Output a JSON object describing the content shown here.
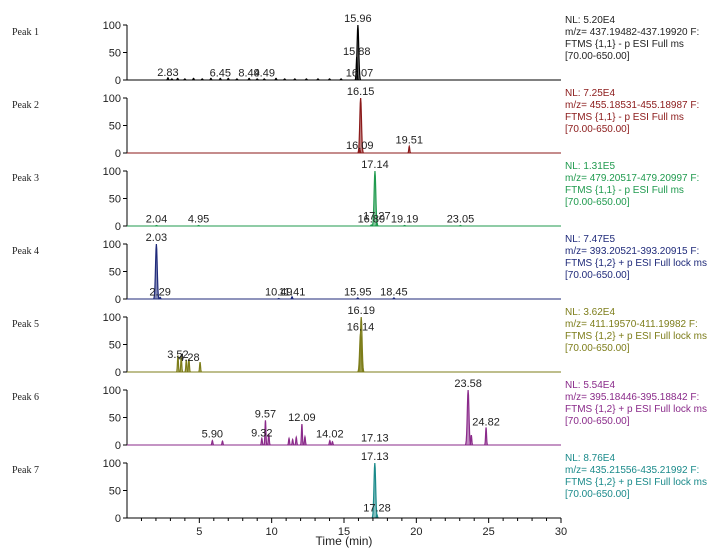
{
  "chart_data": {
    "type": "line",
    "xlabel": "Time (min)",
    "xlim": [
      0,
      30
    ],
    "x_ticks": [
      5,
      10,
      15,
      20,
      25,
      30
    ],
    "y_ticks": [
      0,
      50,
      100
    ],
    "panels": [
      {
        "name": "Peak 1",
        "color": "#000000",
        "info": [
          "NL: 5.20E4",
          "m/z= 437.19482-437.19920 F:",
          "FTMS {1,1}  - p ESI Full ms",
          "[70.00-650.00]"
        ],
        "annotations": [
          {
            "rt": 2.83,
            "y": 2,
            "label": "2.83"
          },
          {
            "rt": 6.45,
            "y": 1,
            "label": "6.45"
          },
          {
            "rt": 8.44,
            "y": 1,
            "label": "8.44"
          },
          {
            "rt": 9.49,
            "y": 1,
            "label": "9.49"
          },
          {
            "rt": 15.88,
            "y": 40,
            "label": "15.88"
          },
          {
            "rt": 15.96,
            "y": 100,
            "label": "15.96"
          },
          {
            "rt": 16.07,
            "y": 1,
            "label": "16.07"
          }
        ],
        "peaks": [
          {
            "rt": 2.83,
            "h": 4
          },
          {
            "rt": 3.1,
            "h": 2
          },
          {
            "rt": 3.5,
            "h": 3
          },
          {
            "rt": 4.0,
            "h": 2
          },
          {
            "rt": 4.6,
            "h": 3
          },
          {
            "rt": 5.2,
            "h": 2
          },
          {
            "rt": 5.8,
            "h": 3
          },
          {
            "rt": 6.45,
            "h": 3
          },
          {
            "rt": 7.0,
            "h": 3
          },
          {
            "rt": 7.6,
            "h": 2
          },
          {
            "rt": 8.44,
            "h": 3
          },
          {
            "rt": 9.0,
            "h": 2
          },
          {
            "rt": 9.49,
            "h": 2
          },
          {
            "rt": 10.3,
            "h": 3
          },
          {
            "rt": 10.9,
            "h": 2
          },
          {
            "rt": 11.6,
            "h": 2
          },
          {
            "rt": 12.4,
            "h": 2
          },
          {
            "rt": 13.2,
            "h": 2
          },
          {
            "rt": 14.0,
            "h": 2
          },
          {
            "rt": 14.8,
            "h": 2
          },
          {
            "rt": 15.88,
            "h": 42
          },
          {
            "rt": 15.96,
            "h": 100
          }
        ]
      },
      {
        "name": "Peak 2",
        "color": "#8b1a1a",
        "info": [
          "NL: 7.25E4",
          "m/z= 455.18531-455.18987 F:",
          "FTMS {1,1}  - p ESI Full ms",
          "[70.00-650.00]"
        ],
        "annotations": [
          {
            "rt": 16.09,
            "y": 2,
            "label": "16.09"
          },
          {
            "rt": 16.15,
            "y": 100,
            "label": "16.15"
          },
          {
            "rt": 19.51,
            "y": 12,
            "label": "19.51"
          }
        ],
        "peaks": [
          {
            "rt": 16.09,
            "h": 6
          },
          {
            "rt": 16.15,
            "h": 100
          },
          {
            "rt": 19.51,
            "h": 12
          }
        ]
      },
      {
        "name": "Peak 3",
        "color": "#1f9a4e",
        "info": [
          "NL: 1.31E5",
          "m/z= 479.20517-479.20997 F:",
          "FTMS {1,1}  - p ESI Full ms",
          "[70.00-650.00]"
        ],
        "annotations": [
          {
            "rt": 2.04,
            "y": 1,
            "label": "2.04"
          },
          {
            "rt": 4.95,
            "y": 1,
            "label": "4.95"
          },
          {
            "rt": 16.89,
            "y": 1,
            "label": "16.89"
          },
          {
            "rt": 17.14,
            "y": 100,
            "label": "17.14"
          },
          {
            "rt": 17.27,
            "y": 6,
            "label": "17.27"
          },
          {
            "rt": 19.19,
            "y": 1,
            "label": "19.19"
          },
          {
            "rt": 23.05,
            "y": 1,
            "label": "23.05"
          }
        ],
        "peaks": [
          {
            "rt": 2.04,
            "h": 1
          },
          {
            "rt": 4.95,
            "h": 1
          },
          {
            "rt": 16.89,
            "h": 2
          },
          {
            "rt": 17.14,
            "h": 100
          },
          {
            "rt": 17.27,
            "h": 6
          },
          {
            "rt": 19.19,
            "h": 1
          },
          {
            "rt": 23.05,
            "h": 1
          }
        ]
      },
      {
        "name": "Peak 4",
        "color": "#1f2a7a",
        "info": [
          "NL: 7.47E5",
          "m/z= 393.20521-393.20915 F:",
          "FTMS {1,2}  + p ESI Full lock ms",
          "[70.00-650.00]"
        ],
        "annotations": [
          {
            "rt": 2.03,
            "y": 100,
            "label": "2.03"
          },
          {
            "rt": 2.29,
            "y": 1,
            "label": "2.29"
          },
          {
            "rt": 10.49,
            "y": 1,
            "label": "10.49"
          },
          {
            "rt": 11.41,
            "y": 1,
            "label": "11.41"
          },
          {
            "rt": 15.95,
            "y": 1,
            "label": "15.95"
          },
          {
            "rt": 18.45,
            "y": 1,
            "label": "18.45"
          }
        ],
        "peaks": [
          {
            "rt": 2.03,
            "h": 100
          },
          {
            "rt": 2.29,
            "h": 3
          },
          {
            "rt": 10.49,
            "h": 1
          },
          {
            "rt": 11.41,
            "h": 4
          },
          {
            "rt": 15.95,
            "h": 2
          },
          {
            "rt": 18.45,
            "h": 2
          }
        ]
      },
      {
        "name": "Peak 5",
        "color": "#7d7d1a",
        "info": [
          "NL: 3.62E4",
          "m/z= 411.19570-411.19982 F:",
          "FTMS {1,2}  + p ESI Full lock ms",
          "[70.00-650.00]"
        ],
        "annotations": [
          {
            "rt": 3.52,
            "y": 20,
            "label": "3.52"
          },
          {
            "rt": 4.28,
            "y": 15,
            "label": "4.28"
          },
          {
            "rt": 16.14,
            "y": 70,
            "label": "16.14"
          },
          {
            "rt": 16.19,
            "y": 100,
            "label": "16.19"
          }
        ],
        "peaks": [
          {
            "rt": 3.52,
            "h": 30
          },
          {
            "rt": 3.75,
            "h": 28
          },
          {
            "rt": 4.1,
            "h": 22
          },
          {
            "rt": 4.28,
            "h": 24
          },
          {
            "rt": 5.05,
            "h": 18
          },
          {
            "rt": 16.14,
            "h": 70
          },
          {
            "rt": 16.19,
            "h": 100
          }
        ]
      },
      {
        "name": "Peak 6",
        "color": "#8a2a8a",
        "info": [
          "NL: 5.54E4",
          "m/z= 395.18446-395.18842 F:",
          "FTMS {1,2}  + p ESI Full lock ms",
          "[70.00-650.00]"
        ],
        "annotations": [
          {
            "rt": 5.9,
            "y": 8,
            "label": "5.90"
          },
          {
            "rt": 9.32,
            "y": 10,
            "label": "9.32"
          },
          {
            "rt": 9.57,
            "y": 45,
            "label": "9.57"
          },
          {
            "rt": 12.09,
            "y": 38,
            "label": "12.09"
          },
          {
            "rt": 14.02,
            "y": 8,
            "label": "14.02"
          },
          {
            "rt": 17.13,
            "y": 1,
            "label": "17.13"
          },
          {
            "rt": 23.58,
            "y": 100,
            "label": "23.58"
          },
          {
            "rt": 24.82,
            "y": 30,
            "label": "24.82"
          }
        ],
        "peaks": [
          {
            "rt": 5.9,
            "h": 8
          },
          {
            "rt": 6.6,
            "h": 7
          },
          {
            "rt": 9.32,
            "h": 12
          },
          {
            "rt": 9.57,
            "h": 45
          },
          {
            "rt": 9.8,
            "h": 20
          },
          {
            "rt": 11.2,
            "h": 12
          },
          {
            "rt": 11.45,
            "h": 10
          },
          {
            "rt": 11.7,
            "h": 14
          },
          {
            "rt": 12.09,
            "h": 38
          },
          {
            "rt": 12.3,
            "h": 15
          },
          {
            "rt": 14.02,
            "h": 8
          },
          {
            "rt": 14.2,
            "h": 6
          },
          {
            "rt": 23.58,
            "h": 100
          },
          {
            "rt": 23.8,
            "h": 18
          },
          {
            "rt": 24.82,
            "h": 32
          }
        ]
      },
      {
        "name": "Peak 7",
        "color": "#1a8a8a",
        "info": [
          "NL: 8.76E4",
          "m/z= 435.21556-435.21992 F:",
          "FTMS {1,2}  + p ESI Full lock ms",
          "[70.00-650.00]"
        ],
        "annotations": [
          {
            "rt": 17.13,
            "y": 100,
            "label": "17.13"
          },
          {
            "rt": 17.28,
            "y": 6,
            "label": "17.28"
          }
        ],
        "peaks": [
          {
            "rt": 17.13,
            "h": 100
          },
          {
            "rt": 17.28,
            "h": 6
          }
        ]
      }
    ]
  }
}
